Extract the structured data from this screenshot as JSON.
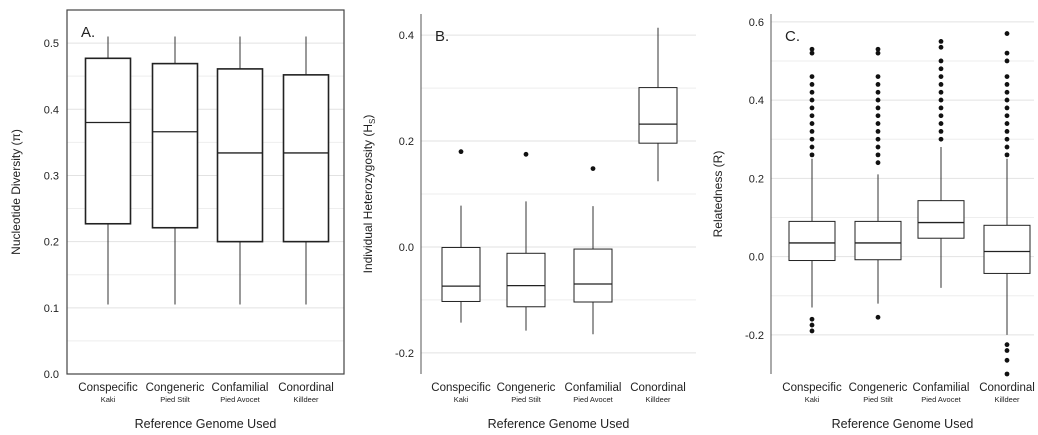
{
  "chart_data": [
    {
      "type": "box",
      "panel_label": "A.",
      "ylabel": "Nucleotide Diversity (π)",
      "xlabel": "Reference Genome Used",
      "ylim": [
        0.0,
        0.55
      ],
      "yticks": [
        "0.0",
        "0.1",
        "0.2",
        "0.3",
        "0.4",
        "0.5"
      ],
      "categories": [
        {
          "name": "Conspecific",
          "sub": "Kaki",
          "min": 0.105,
          "q1": 0.227,
          "median": 0.38,
          "q3": 0.477,
          "max": 0.51,
          "outliers": []
        },
        {
          "name": "Congeneric",
          "sub": "Pied Stilt",
          "min": 0.105,
          "q1": 0.221,
          "median": 0.366,
          "q3": 0.469,
          "max": 0.51,
          "outliers": []
        },
        {
          "name": "Confamilial",
          "sub": "Pied Avocet",
          "min": 0.105,
          "q1": 0.2,
          "median": 0.334,
          "q3": 0.461,
          "max": 0.51,
          "outliers": []
        },
        {
          "name": "Conordinal",
          "sub": "Killdeer",
          "min": 0.105,
          "q1": 0.2,
          "median": 0.334,
          "q3": 0.452,
          "max": 0.51,
          "outliers": []
        }
      ]
    },
    {
      "type": "box",
      "panel_label": "B.",
      "ylabel": "Individual Heterozygosity (H",
      "ylabel_sub": "S",
      "ylabel_end": ")",
      "xlabel": "Reference Genome Used",
      "ylim": [
        -0.24,
        0.44
      ],
      "yticks": [
        "0.4",
        "0.2",
        "0.0",
        "-0.2"
      ],
      "categories": [
        {
          "name": "Conspecific",
          "sub": "Kaki",
          "min": -0.143,
          "q1": -0.103,
          "median": -0.074,
          "q3": -0.001,
          "max": 0.078,
          "outliers": [
            0.18
          ]
        },
        {
          "name": "Congeneric",
          "sub": "Pied Stilt",
          "min": -0.158,
          "q1": -0.113,
          "median": -0.073,
          "q3": -0.012,
          "max": 0.086,
          "outliers": [
            0.175
          ]
        },
        {
          "name": "Confamilial",
          "sub": "Pied Avocet",
          "min": -0.165,
          "q1": -0.104,
          "median": -0.07,
          "q3": -0.004,
          "max": 0.077,
          "outliers": [
            0.148
          ]
        },
        {
          "name": "Conordinal",
          "sub": "Killdeer",
          "min": 0.124,
          "q1": 0.196,
          "median": 0.232,
          "q3": 0.301,
          "max": 0.414,
          "outliers": []
        }
      ]
    },
    {
      "type": "box",
      "panel_label": "C.",
      "ylabel": "Relatedness (R)",
      "xlabel": "Reference Genome Used",
      "ylim": [
        -0.3,
        0.62
      ],
      "yticks": [
        "0.6",
        "0.4",
        "0.2",
        "0.0",
        "-0.2"
      ],
      "categories": [
        {
          "name": "Conspecific",
          "sub": "Kaki",
          "min": -0.13,
          "q1": -0.01,
          "median": 0.035,
          "q3": 0.09,
          "max": 0.25,
          "outliers": [
            -0.16,
            -0.175,
            -0.19,
            0.26,
            0.28,
            0.3,
            0.32,
            0.34,
            0.36,
            0.38,
            0.4,
            0.42,
            0.44,
            0.46,
            0.52,
            0.53
          ]
        },
        {
          "name": "Congeneric",
          "sub": "Pied Stilt",
          "min": -0.12,
          "q1": -0.008,
          "median": 0.035,
          "q3": 0.09,
          "max": 0.21,
          "outliers": [
            -0.155,
            0.24,
            0.26,
            0.28,
            0.3,
            0.32,
            0.34,
            0.36,
            0.38,
            0.4,
            0.42,
            0.44,
            0.46,
            0.52,
            0.53
          ]
        },
        {
          "name": "Confamilial",
          "sub": "Pied Avocet",
          "min": -0.08,
          "q1": 0.047,
          "median": 0.087,
          "q3": 0.143,
          "max": 0.28,
          "outliers": [
            0.3,
            0.32,
            0.34,
            0.36,
            0.38,
            0.4,
            0.42,
            0.44,
            0.46,
            0.48,
            0.5,
            0.535,
            0.55
          ]
        },
        {
          "name": "Conordinal",
          "sub": "Killdeer",
          "min": -0.2,
          "q1": -0.043,
          "median": 0.013,
          "q3": 0.08,
          "max": 0.25,
          "outliers": [
            -0.225,
            -0.24,
            -0.265,
            -0.3,
            0.26,
            0.28,
            0.3,
            0.32,
            0.34,
            0.36,
            0.38,
            0.4,
            0.42,
            0.44,
            0.46,
            0.5,
            0.52,
            0.57
          ]
        }
      ]
    }
  ]
}
